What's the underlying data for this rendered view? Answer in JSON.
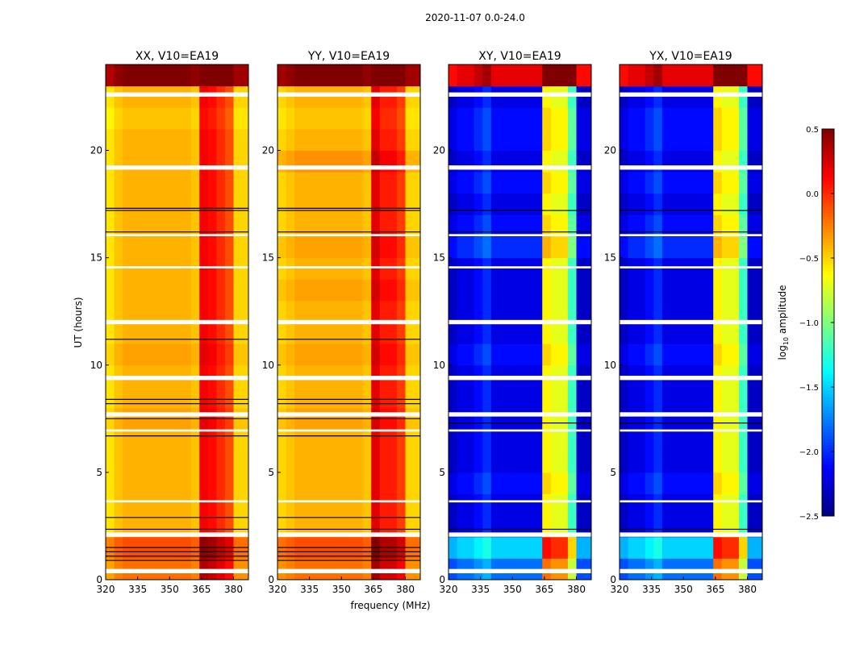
{
  "chart_data": {
    "type": "heatmap",
    "suptitle": "2020-11-07 0.0-24.0",
    "xlabel": "frequency (MHz)",
    "ylabel": "UT (hours)",
    "xlim": [
      320,
      387
    ],
    "ylim": [
      0,
      24
    ],
    "xticks": [
      "320",
      "335",
      "350",
      "365",
      "380"
    ],
    "xtick_values": [
      320,
      335,
      350,
      365,
      380
    ],
    "yticks": [
      "0",
      "5",
      "10",
      "15",
      "20"
    ],
    "ytick_values": [
      0,
      5,
      10,
      15,
      20
    ],
    "freq_bin_edges_mhz": [
      320,
      324,
      328,
      332,
      336,
      340,
      344,
      348,
      352,
      356,
      360,
      364,
      368,
      372,
      376,
      380,
      387
    ],
    "colorbar": {
      "label_prefix": "log",
      "label_sub": "10",
      "label_suffix": " amplitude",
      "range": [
        -2.5,
        0.5
      ],
      "ticks": [
        "0.5",
        "0.0",
        "−0.5",
        "−1.0",
        "−1.5",
        "−2.0",
        "−2.5"
      ],
      "tick_values": [
        0.5,
        0,
        -0.5,
        -1,
        -1.5,
        -2,
        -2.5
      ],
      "colormap": "jet"
    },
    "flagged_hours": [
      [
        0.3,
        0.5
      ],
      [
        2.0,
        2.2
      ],
      [
        3.6,
        3.7
      ],
      [
        6.9,
        7.0
      ],
      [
        7.6,
        7.8
      ],
      [
        9.3,
        9.5
      ],
      [
        11.9,
        12.1
      ],
      [
        14.5,
        14.6
      ],
      [
        16.0,
        16.1
      ],
      [
        19.1,
        19.3
      ],
      [
        22.5,
        22.7
      ]
    ],
    "panels": [
      {
        "title": "XX, V10=EA19",
        "freq_profile": [
          -0.55,
          -0.45,
          -0.4,
          -0.4,
          -0.4,
          -0.4,
          -0.4,
          -0.4,
          -0.4,
          -0.4,
          -0.45,
          0.15,
          0.1,
          0.0,
          -0.1,
          -0.5
        ],
        "hour_offsets": [
          0.2,
          0.3,
          0,
          0,
          0,
          0,
          0,
          0.05,
          0,
          0,
          0.05,
          0,
          0,
          0,
          0,
          0,
          0,
          0,
          0,
          0,
          0,
          -0.05,
          0,
          0.9
        ],
        "black_lines_hours": [
          0.9,
          1.1,
          1.3,
          1.5,
          2.35,
          2.9,
          6.7,
          7.5,
          8.2,
          8.4,
          11.2,
          16.2,
          17.2,
          17.3
        ]
      },
      {
        "title": "YY, V10=EA19",
        "freq_profile": [
          -0.5,
          -0.45,
          -0.4,
          -0.4,
          -0.4,
          -0.4,
          -0.4,
          -0.4,
          -0.4,
          -0.4,
          -0.45,
          0.2,
          0.05,
          0.05,
          -0.05,
          -0.5
        ],
        "hour_offsets": [
          0.2,
          0.3,
          0,
          0,
          0,
          0,
          0,
          0.05,
          0,
          0,
          0.05,
          0,
          0,
          0.05,
          0,
          0.05,
          0,
          0,
          0,
          0.1,
          0,
          -0.05,
          0,
          0.9
        ],
        "black_lines_hours": [
          0.9,
          1.1,
          1.3,
          1.5,
          2.35,
          2.9,
          6.7,
          7.5,
          8.2,
          8.4,
          11.2,
          16.2,
          17.2,
          17.3
        ]
      },
      {
        "title": "XY, V10=EA19",
        "freq_profile": [
          -2.3,
          -2.2,
          -2.2,
          -2.1,
          -2.0,
          -2.2,
          -2.2,
          -2.2,
          -2.2,
          -2.2,
          -2.2,
          -0.6,
          -0.7,
          -0.7,
          -1.2,
          -2.3
        ],
        "hour_offsets": [
          0.4,
          0.7,
          0,
          0,
          0.1,
          0,
          0,
          0,
          0,
          0,
          0.1,
          0,
          0,
          0,
          0,
          0.2,
          0.1,
          0,
          0.1,
          0,
          0.1,
          0.1,
          0,
          2.4
        ],
        "black_lines_hours": [
          2.35,
          7.3,
          16.2,
          17.2
        ]
      },
      {
        "title": "YX, V10=EA19",
        "freq_profile": [
          -2.3,
          -2.2,
          -2.2,
          -2.1,
          -2.0,
          -2.2,
          -2.2,
          -2.2,
          -2.2,
          -2.2,
          -2.2,
          -0.6,
          -0.7,
          -0.7,
          -1.2,
          -2.3
        ],
        "hour_offsets": [
          0.4,
          0.7,
          0,
          0,
          0.1,
          0,
          0,
          0,
          0,
          0,
          0.1,
          0,
          0,
          0,
          0,
          0.2,
          0.1,
          0,
          0.1,
          0,
          0.1,
          0.1,
          0,
          2.4
        ],
        "black_lines_hours": [
          2.35,
          7.3,
          16.2,
          17.2
        ]
      }
    ]
  }
}
